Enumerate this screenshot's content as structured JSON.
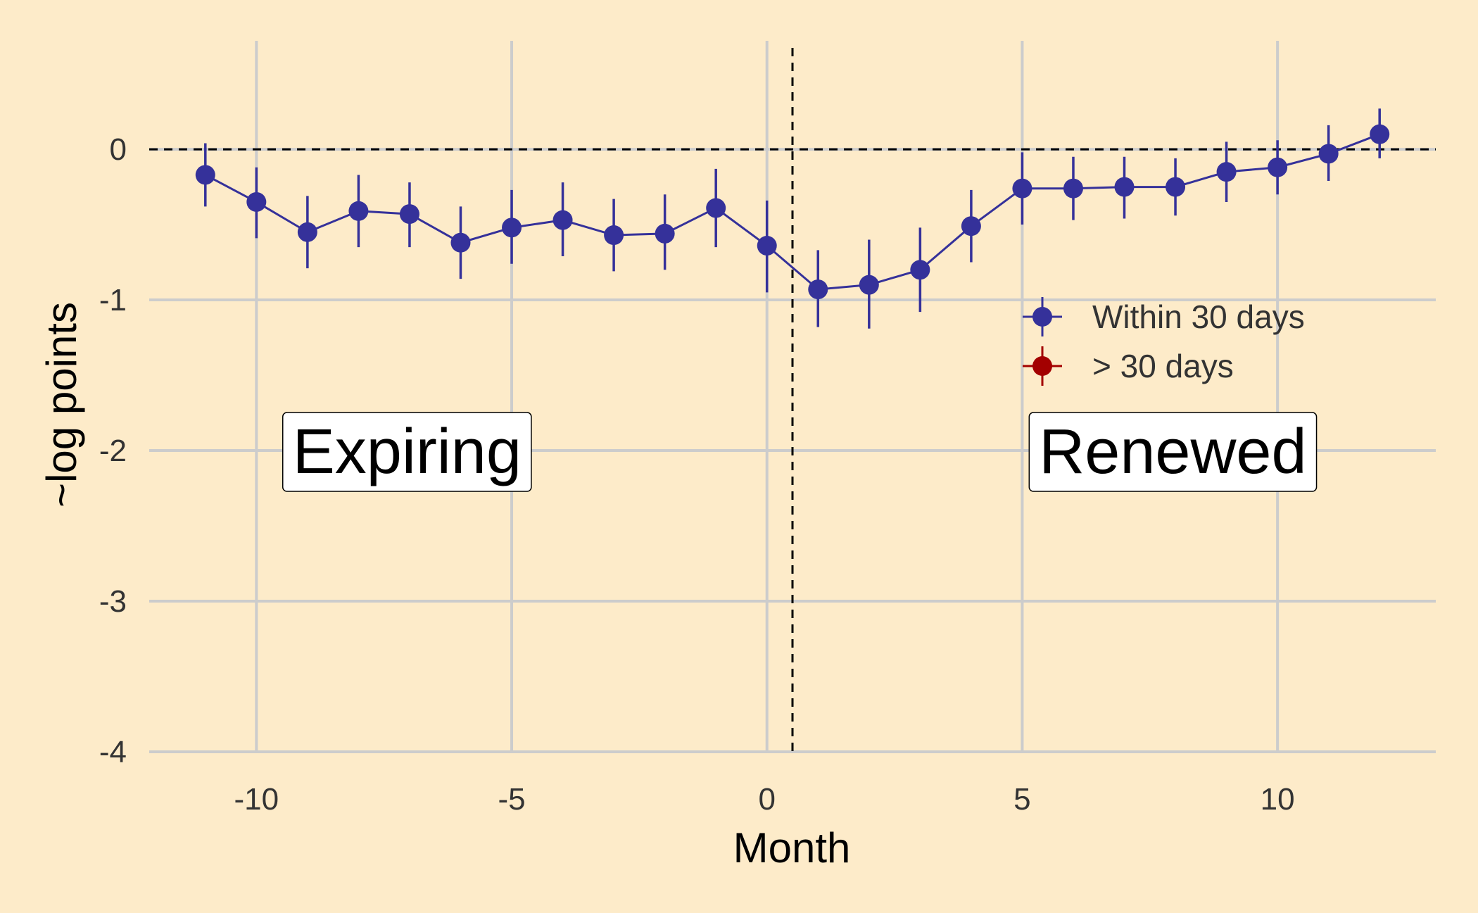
{
  "chart_data": {
    "type": "scatter",
    "xlabel": "Month",
    "ylabel": "~log points",
    "xlim": [
      -12.1,
      13.1
    ],
    "ylim": [
      -4.0,
      0.72
    ],
    "x_ticks": [
      -10,
      -5,
      0,
      5,
      10
    ],
    "x_tick_labels": [
      "-10",
      "-5",
      "0",
      "5",
      "10"
    ],
    "y_ticks": [
      0,
      -1,
      -2,
      -3,
      -4
    ],
    "y_tick_labels": [
      "0",
      "-1",
      "-2",
      "-3",
      "-4"
    ],
    "grid": true,
    "reference_lines": {
      "horizontal_y": 0,
      "vertical_x": 0.5
    },
    "legend_position": "right",
    "annotations": [
      {
        "text": "Expiring",
        "x": -7.05,
        "y": -2.0
      },
      {
        "text": "Renewed",
        "x": 7.95,
        "y": -2.0
      }
    ],
    "series": [
      {
        "name": "Within 30 days",
        "color": "#35319a",
        "x": [
          -11,
          -10,
          -9,
          -8,
          -7,
          -6,
          -5,
          -4,
          -3,
          -2,
          -1,
          0,
          1,
          2,
          3,
          4,
          5,
          6,
          7,
          8,
          9,
          10,
          11,
          12
        ],
        "y": [
          -0.17,
          -0.35,
          -0.55,
          -0.41,
          -0.43,
          -0.62,
          -0.52,
          -0.47,
          -0.57,
          -0.56,
          -0.39,
          -0.64,
          -0.93,
          -0.9,
          -0.8,
          -0.51,
          -0.26,
          -0.26,
          -0.25,
          -0.25,
          -0.15,
          -0.12,
          -0.03,
          0.1
        ],
        "lower": [
          -0.38,
          -0.59,
          -0.79,
          -0.65,
          -0.65,
          -0.86,
          -0.76,
          -0.71,
          -0.81,
          -0.8,
          -0.65,
          -0.95,
          -1.18,
          -1.19,
          -1.08,
          -0.75,
          -0.5,
          -0.47,
          -0.46,
          -0.44,
          -0.35,
          -0.3,
          -0.21,
          -0.06
        ],
        "upper": [
          0.04,
          -0.12,
          -0.31,
          -0.17,
          -0.22,
          -0.38,
          -0.27,
          -0.22,
          -0.33,
          -0.3,
          -0.13,
          -0.34,
          -0.67,
          -0.6,
          -0.52,
          -0.27,
          -0.02,
          -0.05,
          -0.05,
          -0.06,
          0.05,
          0.06,
          0.16,
          0.27
        ]
      },
      {
        "name": "> 30 days",
        "color": "#a30000",
        "x": [],
        "y": [],
        "lower": [],
        "upper": []
      }
    ]
  }
}
